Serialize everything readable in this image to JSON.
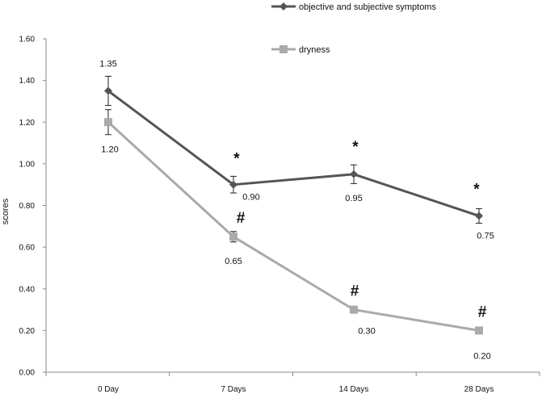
{
  "chart_data": {
    "type": "line",
    "ylabel": "scores",
    "xlabel": "",
    "ylim": [
      0,
      1.6
    ],
    "yticks": [
      "0.00",
      "0.20",
      "0.40",
      "0.60",
      "0.80",
      "1.00",
      "1.20",
      "1.40",
      "1.60"
    ],
    "categories": [
      "0 Day",
      "7 Days",
      "14 Days",
      "28 Days"
    ],
    "grid": false,
    "legend": "top-right",
    "series": [
      {
        "name": "objective and subjective symptoms",
        "color": "#555555",
        "marker": "diamond",
        "values": [
          1.35,
          0.9,
          0.95,
          0.75
        ],
        "error": [
          0.07,
          0.04,
          0.045,
          0.035
        ],
        "labels": [
          "1.35",
          "0.90",
          "0.95",
          "0.75"
        ],
        "significance": [
          "",
          "*",
          "*",
          "*"
        ]
      },
      {
        "name": "dryness",
        "color": "#aaaaaa",
        "marker": "square",
        "values": [
          1.2,
          0.65,
          0.3,
          0.2
        ],
        "error": [
          0.06,
          0.025,
          0,
          0
        ],
        "labels": [
          "1.20",
          "0.65",
          "0.30",
          "0.20"
        ],
        "significance": [
          "",
          "#",
          "#",
          "#"
        ]
      }
    ]
  }
}
